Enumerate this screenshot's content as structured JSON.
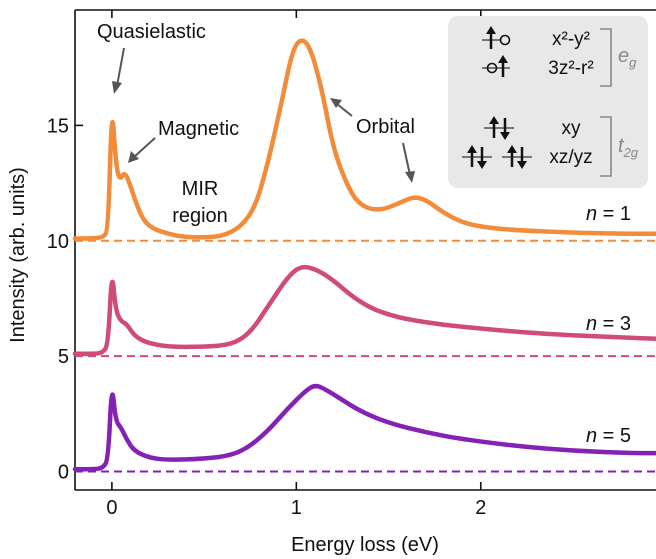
{
  "chart_data": {
    "type": "line",
    "xlabel": "Energy loss (eV)",
    "ylabel": "Intensity (arb. units)",
    "xlim": [
      -0.2,
      2.95
    ],
    "ylim": [
      -0.8,
      20.0
    ],
    "x_ticks": [
      0,
      1,
      2
    ],
    "y_ticks": [
      0,
      5,
      10,
      15
    ],
    "grid": false,
    "legend": "none",
    "series": [
      {
        "name": "n = 1",
        "label_text": "1",
        "color": "#F28C3A",
        "baseline": 10,
        "points": [
          [
            -0.2,
            10.1
          ],
          [
            -0.1,
            10.1
          ],
          [
            -0.05,
            10.15
          ],
          [
            -0.02,
            10.4
          ],
          [
            0,
            16.0
          ],
          [
            0.02,
            13.5
          ],
          [
            0.04,
            12.6
          ],
          [
            0.07,
            13.0
          ],
          [
            0.1,
            12.4
          ],
          [
            0.15,
            11.2
          ],
          [
            0.2,
            10.6
          ],
          [
            0.3,
            10.3
          ],
          [
            0.4,
            10.15
          ],
          [
            0.5,
            10.15
          ],
          [
            0.6,
            10.2
          ],
          [
            0.7,
            10.6
          ],
          [
            0.78,
            11.5
          ],
          [
            0.85,
            13.5
          ],
          [
            0.92,
            16.0
          ],
          [
            0.98,
            18.3
          ],
          [
            1.03,
            18.8
          ],
          [
            1.08,
            18.3
          ],
          [
            1.14,
            16.5
          ],
          [
            1.2,
            14.0
          ],
          [
            1.28,
            12.3
          ],
          [
            1.35,
            11.5
          ],
          [
            1.45,
            11.3
          ],
          [
            1.55,
            11.6
          ],
          [
            1.63,
            11.9
          ],
          [
            1.7,
            11.8
          ],
          [
            1.8,
            11.2
          ],
          [
            1.9,
            10.8
          ],
          [
            2.0,
            10.6
          ],
          [
            2.2,
            10.45
          ],
          [
            2.5,
            10.35
          ],
          [
            2.8,
            10.3
          ],
          [
            2.95,
            10.3
          ]
        ]
      },
      {
        "name": "n = 3",
        "label_text": "3",
        "color": "#D04A7A",
        "baseline": 5,
        "points": [
          [
            -0.2,
            5.1
          ],
          [
            -0.1,
            5.1
          ],
          [
            -0.05,
            5.15
          ],
          [
            -0.02,
            5.5
          ],
          [
            0,
            8.8
          ],
          [
            0.02,
            7.0
          ],
          [
            0.05,
            6.5
          ],
          [
            0.08,
            6.4
          ],
          [
            0.12,
            5.9
          ],
          [
            0.18,
            5.6
          ],
          [
            0.3,
            5.4
          ],
          [
            0.5,
            5.4
          ],
          [
            0.65,
            5.5
          ],
          [
            0.75,
            6.0
          ],
          [
            0.85,
            7.2
          ],
          [
            0.95,
            8.4
          ],
          [
            1.02,
            8.9
          ],
          [
            1.1,
            8.8
          ],
          [
            1.2,
            8.3
          ],
          [
            1.3,
            7.6
          ],
          [
            1.4,
            7.1
          ],
          [
            1.5,
            6.8
          ],
          [
            1.6,
            6.6
          ],
          [
            1.8,
            6.35
          ],
          [
            2.0,
            6.2
          ],
          [
            2.2,
            6.05
          ],
          [
            2.5,
            5.9
          ],
          [
            2.8,
            5.8
          ],
          [
            2.95,
            5.75
          ]
        ]
      },
      {
        "name": "n = 5",
        "label_text": "5",
        "color": "#8322B4",
        "baseline": 0,
        "points": [
          [
            -0.2,
            0.1
          ],
          [
            -0.1,
            0.1
          ],
          [
            -0.05,
            0.15
          ],
          [
            -0.02,
            0.5
          ],
          [
            0,
            3.9
          ],
          [
            0.02,
            2.2
          ],
          [
            0.05,
            1.9
          ],
          [
            0.08,
            1.4
          ],
          [
            0.12,
            0.9
          ],
          [
            0.2,
            0.6
          ],
          [
            0.3,
            0.5
          ],
          [
            0.5,
            0.55
          ],
          [
            0.65,
            0.7
          ],
          [
            0.75,
            1.1
          ],
          [
            0.85,
            1.8
          ],
          [
            0.95,
            2.7
          ],
          [
            1.05,
            3.5
          ],
          [
            1.1,
            3.75
          ],
          [
            1.15,
            3.6
          ],
          [
            1.25,
            3.1
          ],
          [
            1.35,
            2.6
          ],
          [
            1.5,
            2.1
          ],
          [
            1.7,
            1.7
          ],
          [
            1.9,
            1.4
          ],
          [
            2.2,
            1.1
          ],
          [
            2.5,
            0.9
          ],
          [
            2.8,
            0.8
          ],
          [
            2.95,
            0.8
          ]
        ]
      }
    ],
    "annotations": [
      {
        "text": "Quasielastic"
      },
      {
        "text": "Magnetic"
      },
      {
        "text": "MIR"
      },
      {
        "text": "region"
      },
      {
        "text": "Orbital"
      }
    ],
    "inset": {
      "background": "#E8E8E8",
      "eg_label": "e",
      "eg_sub": "g",
      "t2g_label": "t",
      "t2g_sub": "2g",
      "orbitals": [
        "x²-y²",
        "3z²-r²",
        "xy",
        "xz/yz"
      ]
    }
  }
}
